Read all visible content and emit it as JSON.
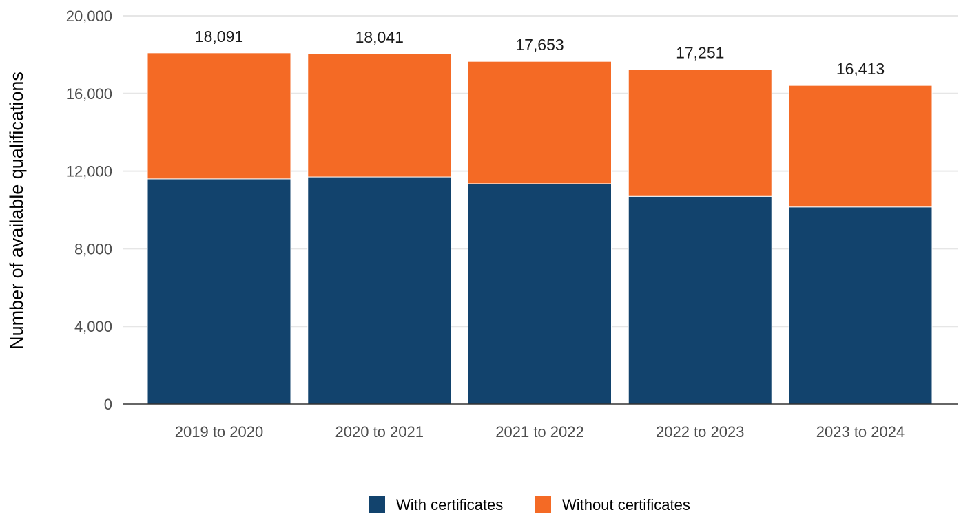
{
  "chart_data": {
    "type": "bar",
    "stacked": true,
    "title": "",
    "xlabel": "",
    "ylabel": "Number of available qualifications",
    "ylim": [
      0,
      20000
    ],
    "yticks": [
      0,
      4000,
      8000,
      12000,
      16000,
      20000
    ],
    "ytick_labels": [
      "0",
      "4,000",
      "8,000",
      "12,000",
      "16,000",
      "20,000"
    ],
    "grid": "horizontal",
    "legend_position": "bottom",
    "categories": [
      "2019 to 2020",
      "2020 to 2021",
      "2021 to 2022",
      "2022 to 2023",
      "2023 to 2024"
    ],
    "series": [
      {
        "name": "With certificates",
        "color": "#12436d",
        "values": [
          11600,
          11700,
          11350,
          10700,
          10150
        ]
      },
      {
        "name": "Without certificates",
        "color": "#f46a25",
        "values": [
          6491,
          6341,
          6303,
          6551,
          6263
        ]
      }
    ],
    "totals": [
      18091,
      18041,
      17653,
      17251,
      16413
    ],
    "total_labels": [
      "18,091",
      "18,041",
      "17,653",
      "17,251",
      "16,413"
    ]
  },
  "colors": {
    "grid": "#e6e6e6",
    "axis": "#333333",
    "background": "#ffffff"
  }
}
